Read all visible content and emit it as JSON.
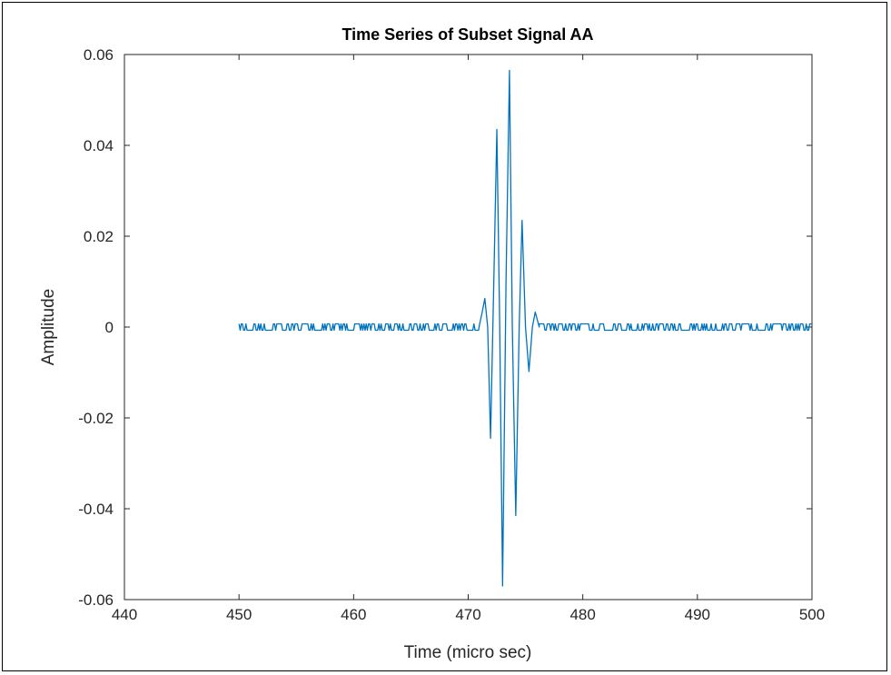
{
  "chart_data": {
    "type": "line",
    "title": "Time Series of Subset Signal AA",
    "xlabel": "Time (micro sec)",
    "ylabel": "Amplitude",
    "xlim": [
      440,
      500
    ],
    "ylim": [
      -0.06,
      0.06
    ],
    "x_ticks": [
      "440",
      "450",
      "460",
      "470",
      "480",
      "490",
      "500"
    ],
    "y_ticks": [
      "-0.06",
      "-0.04",
      "-0.02",
      "0",
      "0.02",
      "0.04",
      "0.06"
    ],
    "grid": false,
    "colors": {
      "line": "#0072BD",
      "axis": "#262626"
    },
    "series": [
      {
        "noise_before": {
          "x_range": [
            450,
            471
          ],
          "amplitude": 0.0007
        },
        "wave_points": [
          [
            471.0,
            0.0007
          ],
          [
            471.2,
            0.003
          ],
          [
            471.45,
            0.0063
          ],
          [
            471.7,
            0.0
          ],
          [
            471.95,
            -0.0245
          ],
          [
            472.25,
            0.012
          ],
          [
            472.5,
            0.0435
          ],
          [
            472.75,
            0.0
          ],
          [
            473.0,
            -0.057
          ],
          [
            473.3,
            0.01
          ],
          [
            473.6,
            0.0565
          ],
          [
            473.85,
            0.0
          ],
          [
            474.15,
            -0.0415
          ],
          [
            474.45,
            0.0
          ],
          [
            474.7,
            0.0235
          ],
          [
            475.0,
            0.0
          ],
          [
            475.3,
            -0.0098
          ],
          [
            475.6,
            0.0
          ],
          [
            475.85,
            0.0033
          ],
          [
            476.2,
            0.0
          ]
        ],
        "noise_after": {
          "x_range": [
            476.2,
            500
          ],
          "amplitude": 0.0007
        }
      }
    ]
  }
}
